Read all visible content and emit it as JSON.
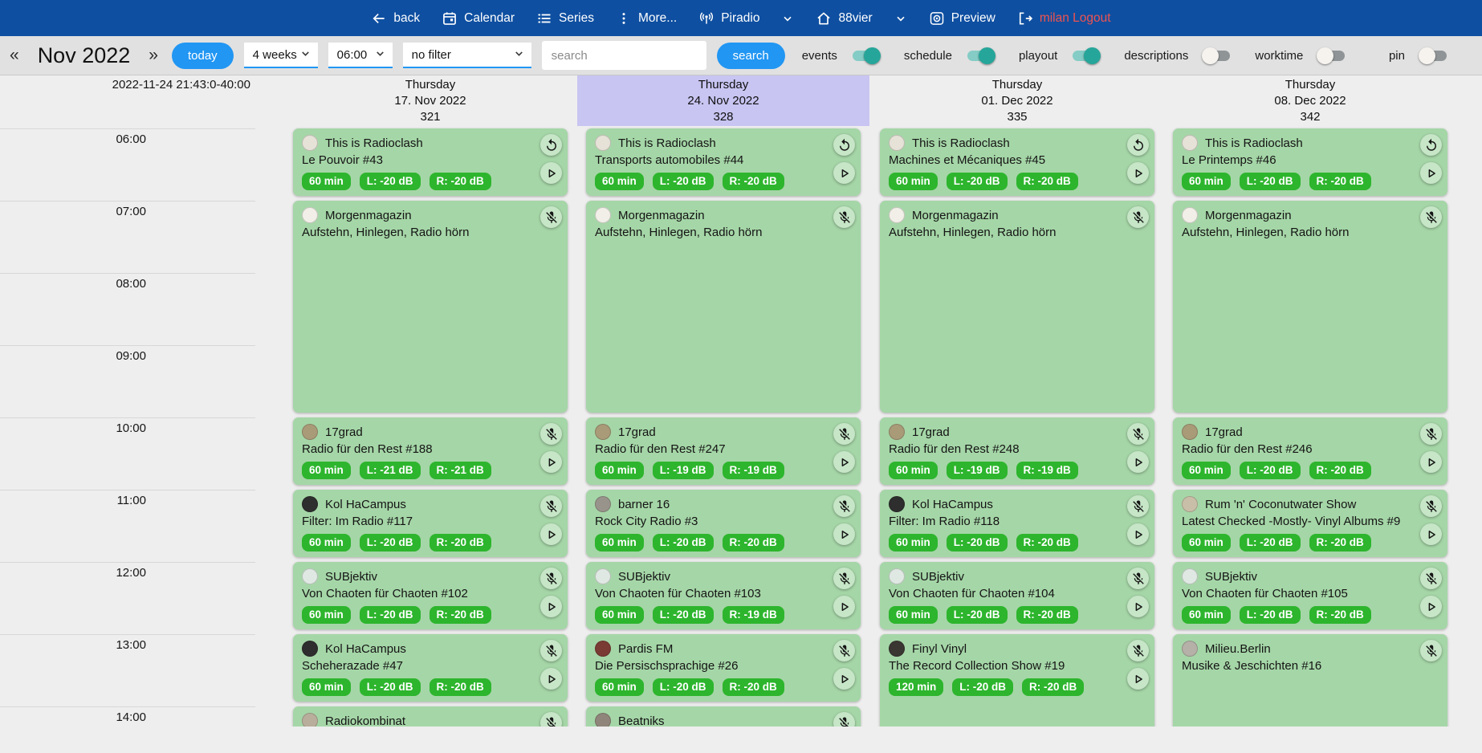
{
  "topnav": {
    "back_label": "back",
    "calendar_label": "Calendar",
    "series_label": "Series",
    "more_label": "More...",
    "piradio_label": "Piradio",
    "station_label": "88vier",
    "preview_label": "Preview",
    "logout_label": "milan Logout"
  },
  "toolbar": {
    "prev_arrow": "«",
    "month_label": "Nov 2022",
    "next_arrow": "»",
    "today_label": "today",
    "range_value": "4 weeks",
    "start_time_value": "06:00",
    "filter_value": "no filter",
    "search_placeholder": "search",
    "search_label": "search",
    "toggles": [
      {
        "label": "events",
        "on": true
      },
      {
        "label": "schedule",
        "on": true
      },
      {
        "label": "playout",
        "on": true
      },
      {
        "label": "descriptions",
        "on": false
      },
      {
        "label": "worktime",
        "on": false
      }
    ],
    "pin_toggle": {
      "label": "pin",
      "on": false
    }
  },
  "timeline": {
    "now_label": "2022-11-24 21:43:0-40:00",
    "hours": [
      "06:00",
      "07:00",
      "08:00",
      "09:00",
      "10:00",
      "11:00",
      "12:00",
      "13:00",
      "14:00"
    ]
  },
  "colors": {
    "topnav_bg": "#0e4fa1",
    "accent_blue": "#2196f3",
    "logout_red": "#ef5350",
    "card_green": "#a5d6a7",
    "badge_green": "#2db52d",
    "highlight_lavender": "#c8c5f2",
    "toggle_on_teal": "#26a69a"
  },
  "columns": [
    {
      "weekday": "Thursday",
      "date": "17. Nov 2022",
      "day_number": "321",
      "highlight": false,
      "events": [
        {
          "title": "This is Radioclash",
          "subtitle": "Le Pouvoir #43",
          "badges": [
            "60 min",
            "L: -20 dB",
            "R: -20 dB"
          ],
          "icons": [
            "replay",
            "play"
          ],
          "start": 0,
          "duration": 1,
          "avatar_color": "#e6e2d8"
        },
        {
          "title": "Morgenmagazin",
          "subtitle": "Aufstehn, Hinlegen, Radio hörn",
          "badges": [],
          "icons": [
            "mic-off"
          ],
          "start": 1,
          "duration": 3,
          "avatar_color": "#f1efe8"
        },
        {
          "title": "17grad",
          "subtitle": "Radio für den Rest #188",
          "badges": [
            "60 min",
            "L: -21 dB",
            "R: -21 dB"
          ],
          "icons": [
            "mic-off",
            "play"
          ],
          "start": 4,
          "duration": 1,
          "avatar_color": "#a99a78"
        },
        {
          "title": "Kol HaCampus",
          "subtitle": "Filter: Im Radio #117",
          "badges": [
            "60 min",
            "L: -20 dB",
            "R: -20 dB"
          ],
          "icons": [
            "mic-off",
            "play"
          ],
          "start": 5,
          "duration": 1,
          "avatar_color": "#2e2e2e"
        },
        {
          "title": "SUBjektiv",
          "subtitle": "Von Chaoten für Chaoten #102",
          "badges": [
            "60 min",
            "L: -20 dB",
            "R: -20 dB"
          ],
          "icons": [
            "mic-off",
            "play"
          ],
          "start": 6,
          "duration": 1,
          "avatar_color": "#dfe8e2"
        },
        {
          "title": "Kol HaCampus",
          "subtitle": "Scheherazade #47",
          "badges": [
            "60 min",
            "L: -20 dB",
            "R: -20 dB"
          ],
          "icons": [
            "mic-off",
            "play"
          ],
          "start": 7,
          "duration": 1,
          "avatar_color": "#2e2e2e"
        },
        {
          "title": "Radiokombinat",
          "subtitle": "",
          "badges": [],
          "icons": [
            "mic-off"
          ],
          "start": 8,
          "duration": 1,
          "avatar_color": "#b9ae9c"
        }
      ]
    },
    {
      "weekday": "Thursday",
      "date": "24. Nov 2022",
      "day_number": "328",
      "highlight": true,
      "events": [
        {
          "title": "This is Radioclash",
          "subtitle": "Transports automobiles #44",
          "badges": [
            "60 min",
            "L: -20 dB",
            "R: -20 dB"
          ],
          "icons": [
            "replay",
            "play"
          ],
          "start": 0,
          "duration": 1,
          "avatar_color": "#e6e2d8"
        },
        {
          "title": "Morgenmagazin",
          "subtitle": "Aufstehn, Hinlegen, Radio hörn",
          "badges": [],
          "icons": [
            "mic-off"
          ],
          "start": 1,
          "duration": 3,
          "avatar_color": "#f1efe8"
        },
        {
          "title": "17grad",
          "subtitle": "Radio für den Rest #247",
          "badges": [
            "60 min",
            "L: -19 dB",
            "R: -19 dB"
          ],
          "icons": [
            "mic-off",
            "play"
          ],
          "start": 4,
          "duration": 1,
          "avatar_color": "#a99a78"
        },
        {
          "title": "barner 16",
          "subtitle": "Rock City Radio #3",
          "badges": [
            "60 min",
            "L: -20 dB",
            "R: -20 dB"
          ],
          "icons": [
            "mic-off",
            "play"
          ],
          "start": 5,
          "duration": 1,
          "avatar_color": "#98948b"
        },
        {
          "title": "SUBjektiv",
          "subtitle": "Von Chaoten für Chaoten #103",
          "badges": [
            "60 min",
            "L: -20 dB",
            "R: -19 dB"
          ],
          "icons": [
            "mic-off",
            "play"
          ],
          "start": 6,
          "duration": 1,
          "avatar_color": "#dfe8e2"
        },
        {
          "title": "Pardis FM",
          "subtitle": "Die Persischsprachige #26",
          "badges": [
            "60 min",
            "L: -20 dB",
            "R: -20 dB"
          ],
          "icons": [
            "mic-off",
            "play"
          ],
          "start": 7,
          "duration": 1,
          "avatar_color": "#7a3b35"
        },
        {
          "title": "Beatniks",
          "subtitle": "",
          "badges": [],
          "icons": [
            "mic-off"
          ],
          "start": 8,
          "duration": 1,
          "avatar_color": "#8f857a"
        }
      ]
    },
    {
      "weekday": "Thursday",
      "date": "01. Dec 2022",
      "day_number": "335",
      "highlight": false,
      "events": [
        {
          "title": "This is Radioclash",
          "subtitle": "Machines et Mécaniques #45",
          "badges": [
            "60 min",
            "L: -20 dB",
            "R: -20 dB"
          ],
          "icons": [
            "replay",
            "play"
          ],
          "start": 0,
          "duration": 1,
          "avatar_color": "#e6e2d8"
        },
        {
          "title": "Morgenmagazin",
          "subtitle": "Aufstehn, Hinlegen, Radio hörn",
          "badges": [],
          "icons": [
            "mic-off"
          ],
          "start": 1,
          "duration": 3,
          "avatar_color": "#f1efe8"
        },
        {
          "title": "17grad",
          "subtitle": "Radio für den Rest #248",
          "badges": [
            "60 min",
            "L: -19 dB",
            "R: -19 dB"
          ],
          "icons": [
            "mic-off",
            "play"
          ],
          "start": 4,
          "duration": 1,
          "avatar_color": "#a99a78"
        },
        {
          "title": "Kol HaCampus",
          "subtitle": "Filter: Im Radio #118",
          "badges": [
            "60 min",
            "L: -20 dB",
            "R: -20 dB"
          ],
          "icons": [
            "mic-off",
            "play"
          ],
          "start": 5,
          "duration": 1,
          "avatar_color": "#2e2e2e"
        },
        {
          "title": "SUBjektiv",
          "subtitle": "Von Chaoten für Chaoten #104",
          "badges": [
            "60 min",
            "L: -20 dB",
            "R: -20 dB"
          ],
          "icons": [
            "mic-off",
            "play"
          ],
          "start": 6,
          "duration": 1,
          "avatar_color": "#dfe8e2"
        },
        {
          "title": "Finyl Vinyl",
          "subtitle": "The Record Collection Show #19",
          "badges": [
            "120 min",
            "L: -20 dB",
            "R: -20 dB"
          ],
          "icons": [
            "mic-off",
            "play"
          ],
          "start": 7,
          "duration": 2,
          "avatar_color": "#3a3632"
        }
      ]
    },
    {
      "weekday": "Thursday",
      "date": "08. Dec 2022",
      "day_number": "342",
      "highlight": false,
      "events": [
        {
          "title": "This is Radioclash",
          "subtitle": "Le Printemps #46",
          "badges": [
            "60 min",
            "L: -20 dB",
            "R: -20 dB"
          ],
          "icons": [
            "replay",
            "play"
          ],
          "start": 0,
          "duration": 1,
          "avatar_color": "#e6e2d8"
        },
        {
          "title": "Morgenmagazin",
          "subtitle": "Aufstehn, Hinlegen, Radio hörn",
          "badges": [],
          "icons": [
            "mic-off"
          ],
          "start": 1,
          "duration": 3,
          "avatar_color": "#f1efe8"
        },
        {
          "title": "17grad",
          "subtitle": "Radio für den Rest #246",
          "badges": [
            "60 min",
            "L: -20 dB",
            "R: -20 dB"
          ],
          "icons": [
            "mic-off",
            "play"
          ],
          "start": 4,
          "duration": 1,
          "avatar_color": "#a99a78"
        },
        {
          "title": "Rum 'n' Coconutwater Show",
          "subtitle": "Latest Checked -Mostly- Vinyl Albums #9",
          "badges": [
            "60 min",
            "L: -20 dB",
            "R: -20 dB"
          ],
          "icons": [
            "mic-off",
            "play"
          ],
          "start": 5,
          "duration": 1,
          "avatar_color": "#c9bfa8"
        },
        {
          "title": "SUBjektiv",
          "subtitle": "Von Chaoten für Chaoten #105",
          "badges": [
            "60 min",
            "L: -20 dB",
            "R: -20 dB"
          ],
          "icons": [
            "mic-off",
            "play"
          ],
          "start": 6,
          "duration": 1,
          "avatar_color": "#dfe8e2"
        },
        {
          "title": "Milieu.Berlin",
          "subtitle": "Musike & Jeschichten #16",
          "badges": [],
          "icons": [
            "mic-off"
          ],
          "start": 7,
          "duration": 2,
          "avatar_color": "#b5b0a8"
        }
      ]
    }
  ]
}
